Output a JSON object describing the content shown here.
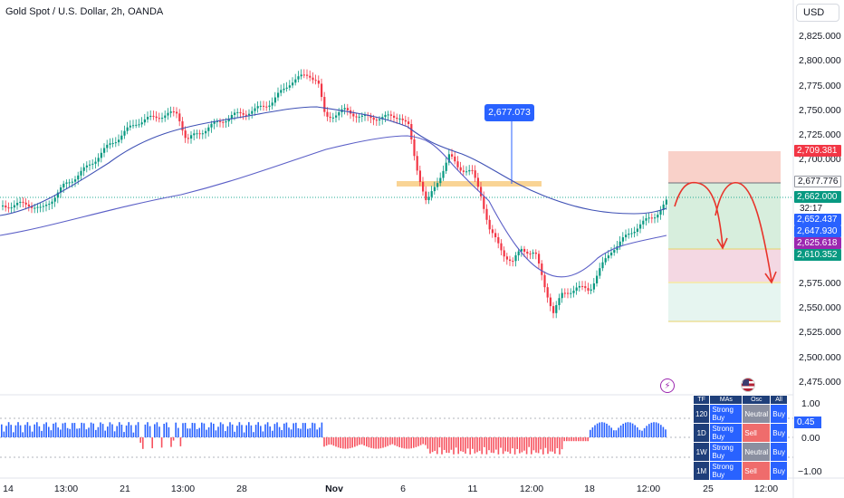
{
  "header": {
    "title": "Gold Spot / U.S. Dollar, 2h, OANDA",
    "currency": "USD"
  },
  "y_axis": {
    "ticks": [
      "2,825.000",
      "2,800.000",
      "2,775.000",
      "2,750.000",
      "2,725.000",
      "2,700.000",
      "2,575.000",
      "2,550.000",
      "2,525.000",
      "2,500.000",
      "2,475.000"
    ]
  },
  "x_axis": {
    "ticks": [
      {
        "label": "14",
        "bold": false
      },
      {
        "label": "13:00",
        "bold": false
      },
      {
        "label": "21",
        "bold": false
      },
      {
        "label": "13:00",
        "bold": false
      },
      {
        "label": "28",
        "bold": false
      },
      {
        "label": "Nov",
        "bold": true
      },
      {
        "label": "6",
        "bold": false
      },
      {
        "label": "11",
        "bold": false
      },
      {
        "label": "12:00",
        "bold": false
      },
      {
        "label": "18",
        "bold": false
      },
      {
        "label": "12:00",
        "bold": false
      },
      {
        "label": "25",
        "bold": false
      },
      {
        "label": "12:00",
        "bold": false
      }
    ]
  },
  "price_tags": {
    "stop_loss": "2,709.381",
    "entry": "2,677.776",
    "last_price": "2,662.000",
    "countdown": "32:17",
    "ma_fast": "2,652.437",
    "ma_slow": "2,647.930",
    "target_1": "2,625.618",
    "target_2": "2,610.352"
  },
  "callout": {
    "label": "2,677.073"
  },
  "oscillator": {
    "ticks": [
      "1.00",
      "0.00",
      "−1.00"
    ],
    "current": "0.45"
  },
  "ta_table": {
    "headers": [
      "TF",
      "MAs",
      "Osc",
      "All"
    ],
    "rows": [
      {
        "tf": "120",
        "mas": "Strong Buy",
        "osc": "Neutral",
        "all": "Buy",
        "mas_state": "buy",
        "osc_state": "neutral",
        "all_state": "buy"
      },
      {
        "tf": "1D",
        "mas": "Strong Buy",
        "osc": "Sell",
        "all": "Buy",
        "mas_state": "buy",
        "osc_state": "sell",
        "all_state": "buy"
      },
      {
        "tf": "1W",
        "mas": "Strong Buy",
        "osc": "Neutral",
        "all": "Buy",
        "mas_state": "buy",
        "osc_state": "neutral",
        "all_state": "buy"
      },
      {
        "tf": "1M",
        "mas": "Strong Buy",
        "osc": "Sell",
        "all": "Buy",
        "mas_state": "buy",
        "osc_state": "sell",
        "all_state": "buy"
      }
    ]
  },
  "icons": {
    "lightning": "lightning-icon",
    "us_flag": "us-flag-icon"
  },
  "colors": {
    "up": "#089981",
    "down": "#f23645",
    "ma_fast": "#3f51b5",
    "ma_slow": "#5b5fc7",
    "stop_zone": "#f8c9bf",
    "profit_zone": "#d3ecd9",
    "target2_zone": "#f3d4e0",
    "target3_zone": "#e3f4ee",
    "accent": "#2962ff"
  }
}
